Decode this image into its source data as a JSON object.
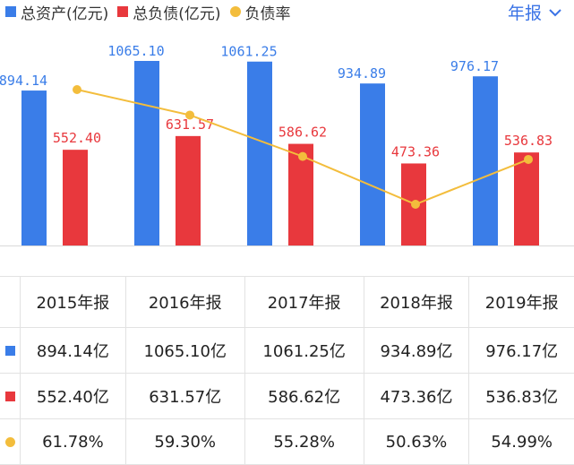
{
  "legend": {
    "assets": "总资产(亿元)",
    "liabilities": "总负债(亿元)",
    "ratio": "负债率"
  },
  "period_selector": {
    "label": "年报"
  },
  "colors": {
    "assets": "#3a7de8",
    "liabilities": "#e8383d",
    "ratio": "#f3bd3c"
  },
  "chart_data": {
    "type": "bar",
    "categories": [
      "2015年报",
      "2016年报",
      "2017年报",
      "2018年报",
      "2019年报"
    ],
    "series": [
      {
        "name": "总资产(亿元)",
        "values": [
          894.14,
          1065.1,
          1061.25,
          934.89,
          976.17
        ],
        "labels": [
          "894.14",
          "1065.10",
          "1061.25",
          "934.89",
          "976.17"
        ]
      },
      {
        "name": "总负债(亿元)",
        "values": [
          552.4,
          631.57,
          586.62,
          473.36,
          536.83
        ],
        "labels": [
          "552.40",
          "631.57",
          "586.62",
          "473.36",
          "536.83"
        ]
      },
      {
        "name": "负债率",
        "values": [
          61.78,
          59.3,
          55.28,
          50.63,
          54.99
        ]
      }
    ],
    "ylim": [
      0,
      1065.1
    ],
    "grid": false,
    "legend": "top-left"
  },
  "table": {
    "header": [
      "2015年报",
      "2016年报",
      "2017年报",
      "2018年报",
      "2019年报"
    ],
    "rows": [
      [
        "894.14亿",
        "1065.10亿",
        "1061.25亿",
        "934.89亿",
        "976.17亿"
      ],
      [
        "552.40亿",
        "631.57亿",
        "586.62亿",
        "473.36亿",
        "536.83亿"
      ],
      [
        "61.78%",
        "59.30%",
        "55.28%",
        "50.63%",
        "54.99%"
      ]
    ]
  }
}
